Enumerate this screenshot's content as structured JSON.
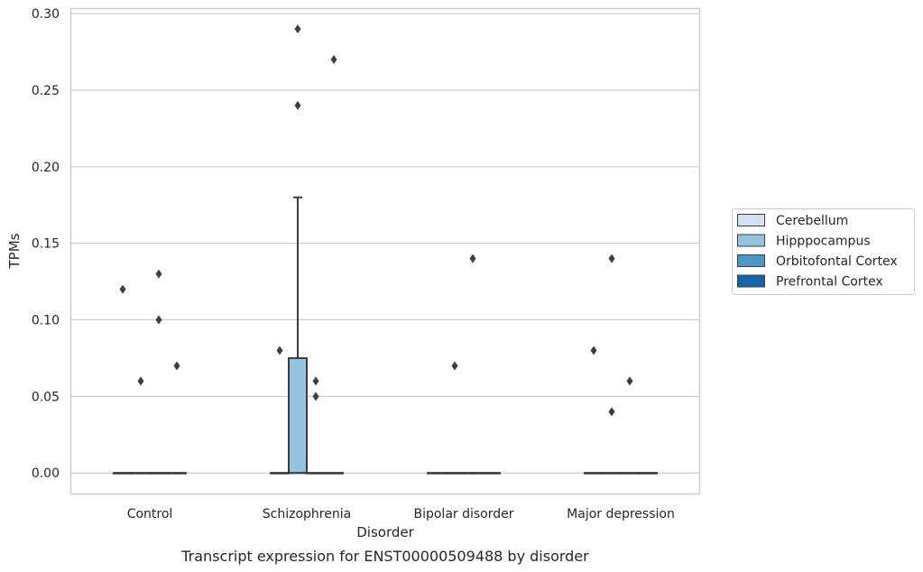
{
  "chart_data": {
    "type": "box",
    "title": "Transcript expression for ENST00000509488 by disorder",
    "xlabel": "Disorder",
    "ylabel": "TPMs",
    "ylim": [
      -0.014,
      0.303
    ],
    "yticks": [
      0.0,
      0.05,
      0.1,
      0.15,
      0.2,
      0.25,
      0.3
    ],
    "ytick_labels": [
      "0.00",
      "0.05",
      "0.10",
      "0.15",
      "0.20",
      "0.25",
      "0.30"
    ],
    "categories": [
      "Control",
      "Schizophrenia",
      "Bipolar disorder",
      "Major depression"
    ],
    "grid": "horizontal",
    "legend_position": "right",
    "series": [
      {
        "name": "Cerebellum",
        "color": "#d0e1f2"
      },
      {
        "name": "Hipppocampus",
        "color": "#94c4df"
      },
      {
        "name": "Orbitofontal Cortex",
        "color": "#4a98c9"
      },
      {
        "name": "Prefrontal Cortex",
        "color": "#1764ab"
      }
    ],
    "boxes": [
      {
        "category": "Control",
        "series": "Cerebellum",
        "q1": 0,
        "median": 0,
        "q3": 0,
        "whisker_low": 0,
        "whisker_high": 0,
        "outliers": [
          0.12
        ]
      },
      {
        "category": "Control",
        "series": "Hipppocampus",
        "q1": 0,
        "median": 0,
        "q3": 0,
        "whisker_low": 0,
        "whisker_high": 0,
        "outliers": [
          0.06
        ]
      },
      {
        "category": "Control",
        "series": "Orbitofontal Cortex",
        "q1": 0,
        "median": 0,
        "q3": 0,
        "whisker_low": 0,
        "whisker_high": 0,
        "outliers": [
          0.13,
          0.1
        ]
      },
      {
        "category": "Control",
        "series": "Prefrontal Cortex",
        "q1": 0,
        "median": 0,
        "q3": 0,
        "whisker_low": 0,
        "whisker_high": 0,
        "outliers": [
          0.07
        ]
      },
      {
        "category": "Schizophrenia",
        "series": "Cerebellum",
        "q1": 0,
        "median": 0,
        "q3": 0,
        "whisker_low": 0,
        "whisker_high": 0,
        "outliers": [
          0.08
        ]
      },
      {
        "category": "Schizophrenia",
        "series": "Hipppocampus",
        "q1": 0,
        "median": 0,
        "q3": 0.075,
        "whisker_low": 0,
        "whisker_high": 0.18,
        "outliers": [
          0.29,
          0.24
        ]
      },
      {
        "category": "Schizophrenia",
        "series": "Orbitofontal Cortex",
        "q1": 0,
        "median": 0,
        "q3": 0,
        "whisker_low": 0,
        "whisker_high": 0,
        "outliers": [
          0.06,
          0.05
        ]
      },
      {
        "category": "Schizophrenia",
        "series": "Prefrontal Cortex",
        "q1": 0,
        "median": 0,
        "q3": 0,
        "whisker_low": 0,
        "whisker_high": 0,
        "outliers": [
          0.27
        ]
      },
      {
        "category": "Bipolar disorder",
        "series": "Cerebellum",
        "q1": 0,
        "median": 0,
        "q3": 0,
        "whisker_low": 0,
        "whisker_high": 0,
        "outliers": []
      },
      {
        "category": "Bipolar disorder",
        "series": "Hipppocampus",
        "q1": 0,
        "median": 0,
        "q3": 0,
        "whisker_low": 0,
        "whisker_high": 0,
        "outliers": [
          0.07
        ]
      },
      {
        "category": "Bipolar disorder",
        "series": "Orbitofontal Cortex",
        "q1": 0,
        "median": 0,
        "q3": 0,
        "whisker_low": 0,
        "whisker_high": 0,
        "outliers": [
          0.14
        ]
      },
      {
        "category": "Bipolar disorder",
        "series": "Prefrontal Cortex",
        "q1": 0,
        "median": 0,
        "q3": 0,
        "whisker_low": 0,
        "whisker_high": 0,
        "outliers": []
      },
      {
        "category": "Major depression",
        "series": "Cerebellum",
        "q1": 0,
        "median": 0,
        "q3": 0,
        "whisker_low": 0,
        "whisker_high": 0,
        "outliers": [
          0.08
        ]
      },
      {
        "category": "Major depression",
        "series": "Hipppocampus",
        "q1": 0,
        "median": 0,
        "q3": 0,
        "whisker_low": 0,
        "whisker_high": 0,
        "outliers": [
          0.14,
          0.04
        ]
      },
      {
        "category": "Major depression",
        "series": "Orbitofontal Cortex",
        "q1": 0,
        "median": 0,
        "q3": 0,
        "whisker_low": 0,
        "whisker_high": 0,
        "outliers": [
          0.06
        ]
      },
      {
        "category": "Major depression",
        "series": "Prefrontal Cortex",
        "q1": 0,
        "median": 0,
        "q3": 0,
        "whisker_low": 0,
        "whisker_high": 0,
        "outliers": []
      }
    ]
  }
}
